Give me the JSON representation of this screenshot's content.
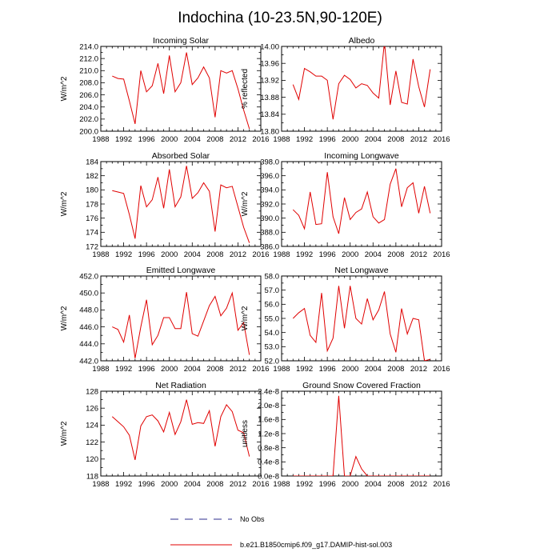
{
  "figure": {
    "title": "Indochina (10-23.5N,90-120E)"
  },
  "legend": {
    "no_obs_label": "No Obs",
    "model_label": "b.e21.B1850cmip6.f09_g17.DAMIP-hist-sol.003",
    "no_obs_color": "#2c2c8c",
    "model_color": "#e00000"
  },
  "chart_data": [
    {
      "type": "line",
      "title": "Incoming Solar",
      "ylabel": "W/m^2",
      "xlim": [
        1988,
        2016
      ],
      "ylim": [
        200,
        214
      ],
      "xticks": [
        1988,
        1992,
        1996,
        2000,
        2004,
        2008,
        2012,
        2016
      ],
      "yticks": [
        "200.0",
        "202.0",
        "204.0",
        "206.0",
        "208.0",
        "210.0",
        "212.0",
        "214.0"
      ],
      "x": [
        1990,
        1991,
        1992,
        1993,
        1994,
        1995,
        1996,
        1997,
        1998,
        1999,
        2000,
        2001,
        2002,
        2003,
        2004,
        2005,
        2006,
        2007,
        2008,
        2009,
        2010,
        2011,
        2012,
        2013,
        2014
      ],
      "y": [
        209.1,
        208.7,
        208.6,
        205.0,
        201.2,
        210.0,
        206.5,
        207.5,
        211.2,
        206.2,
        212.5,
        206.5,
        208.0,
        213.0,
        207.7,
        208.8,
        210.6,
        208.8,
        202.3,
        210.0,
        209.6,
        210.0,
        207.0,
        203.5,
        200.4
      ]
    },
    {
      "type": "line",
      "title": "Albedo",
      "ylabel": "% reflected",
      "xlim": [
        1988,
        2016
      ],
      "ylim": [
        13.8,
        14.0
      ],
      "xticks": [
        1988,
        1992,
        1996,
        2000,
        2004,
        2008,
        2012,
        2016
      ],
      "yticks": [
        "13.80",
        "13.84",
        "13.88",
        "13.92",
        "13.96",
        "14.00"
      ],
      "x": [
        1990,
        1991,
        1992,
        1993,
        1994,
        1995,
        1996,
        1997,
        1998,
        1999,
        2000,
        2001,
        2002,
        2003,
        2004,
        2005,
        2006,
        2007,
        2008,
        2009,
        2010,
        2011,
        2012,
        2013,
        2014
      ],
      "y": [
        13.91,
        13.875,
        13.948,
        13.94,
        13.93,
        13.93,
        13.92,
        13.828,
        13.912,
        13.932,
        13.922,
        13.902,
        13.912,
        13.908,
        13.89,
        13.878,
        14.01,
        13.862,
        13.942,
        13.868,
        13.864,
        13.97,
        13.905,
        13.857,
        13.946
      ]
    },
    {
      "type": "line",
      "title": "Absorbed Solar",
      "ylabel": "W/m^2",
      "xlim": [
        1988,
        2016
      ],
      "ylim": [
        172,
        184
      ],
      "xticks": [
        1988,
        1992,
        1996,
        2000,
        2004,
        2008,
        2012,
        2016
      ],
      "yticks": [
        "172",
        "174",
        "176",
        "178",
        "180",
        "182",
        "184"
      ],
      "x": [
        1990,
        1991,
        1992,
        1993,
        1994,
        1995,
        1996,
        1997,
        1998,
        1999,
        2000,
        2001,
        2002,
        2003,
        2004,
        2005,
        2006,
        2007,
        2008,
        2009,
        2010,
        2011,
        2012,
        2013,
        2014
      ],
      "y": [
        179.9,
        179.7,
        179.5,
        176.5,
        173.1,
        180.6,
        177.6,
        178.6,
        181.8,
        177.4,
        182.9,
        177.6,
        179.0,
        183.4,
        178.8,
        179.6,
        181.0,
        179.8,
        174.1,
        180.7,
        180.3,
        180.5,
        177.6,
        174.7,
        172.5
      ]
    },
    {
      "type": "line",
      "title": "Incoming Longwave",
      "ylabel": "W/m^2",
      "xlim": [
        1988,
        2016
      ],
      "ylim": [
        386,
        398
      ],
      "xticks": [
        1988,
        1992,
        1996,
        2000,
        2004,
        2008,
        2012,
        2016
      ],
      "yticks": [
        "386.0",
        "388.0",
        "390.0",
        "392.0",
        "394.0",
        "396.0",
        "398.0"
      ],
      "x": [
        1990,
        1991,
        1992,
        1993,
        1994,
        1995,
        1996,
        1997,
        1998,
        1999,
        2000,
        2001,
        2002,
        2003,
        2004,
        2005,
        2006,
        2007,
        2008,
        2009,
        2010,
        2011,
        2012,
        2013,
        2014
      ],
      "y": [
        391.2,
        390.4,
        388.5,
        393.7,
        389.1,
        389.2,
        396.5,
        390.2,
        387.8,
        392.9,
        389.8,
        390.8,
        391.3,
        393.7,
        390.2,
        389.3,
        389.8,
        394.8,
        397.0,
        391.6,
        394.3,
        395.0,
        390.7,
        394.5,
        390.7
      ]
    },
    {
      "type": "line",
      "title": "Emitted Longwave",
      "ylabel": "W/m^2",
      "xlim": [
        1988,
        2016
      ],
      "ylim": [
        442,
        452
      ],
      "xticks": [
        1988,
        1992,
        1996,
        2000,
        2004,
        2008,
        2012,
        2016
      ],
      "yticks": [
        "442.0",
        "444.0",
        "446.0",
        "448.0",
        "450.0",
        "452.0"
      ],
      "x": [
        1990,
        1991,
        1992,
        1993,
        1994,
        1995,
        1996,
        1997,
        1998,
        1999,
        2000,
        2001,
        2002,
        2003,
        2004,
        2005,
        2006,
        2007,
        2008,
        2009,
        2010,
        2011,
        2012,
        2013,
        2014
      ],
      "y": [
        446.0,
        445.7,
        444.2,
        447.4,
        442.3,
        446.0,
        449.2,
        443.9,
        445.0,
        447.1,
        447.1,
        445.8,
        445.8,
        450.1,
        445.2,
        444.9,
        446.7,
        448.5,
        449.6,
        447.3,
        448.2,
        450.0,
        445.6,
        446.5,
        442.7
      ]
    },
    {
      "type": "line",
      "title": "Net Longwave",
      "ylabel": "W/m^2",
      "xlim": [
        1988,
        2016
      ],
      "ylim": [
        52,
        58
      ],
      "xticks": [
        1988,
        1992,
        1996,
        2000,
        2004,
        2008,
        2012,
        2016
      ],
      "yticks": [
        "52.0",
        "53.0",
        "54.0",
        "55.0",
        "56.0",
        "57.0",
        "58.0"
      ],
      "x": [
        1990,
        1991,
        1992,
        1993,
        1994,
        1995,
        1996,
        1997,
        1998,
        1999,
        2000,
        2001,
        2002,
        2003,
        2004,
        2005,
        2006,
        2007,
        2008,
        2009,
        2010,
        2011,
        2012,
        2013,
        2014
      ],
      "y": [
        55.0,
        55.4,
        55.7,
        53.8,
        53.3,
        56.8,
        52.7,
        53.6,
        57.3,
        54.3,
        57.3,
        55.0,
        54.6,
        56.4,
        54.9,
        55.6,
        56.9,
        53.9,
        52.6,
        55.7,
        53.9,
        55.0,
        54.9,
        52.0,
        52.1
      ]
    },
    {
      "type": "line",
      "title": "Net Radiation",
      "ylabel": "W/m^2",
      "xlim": [
        1988,
        2016
      ],
      "ylim": [
        118,
        128
      ],
      "xticks": [
        1988,
        1992,
        1996,
        2000,
        2004,
        2008,
        2012,
        2016
      ],
      "yticks": [
        "118",
        "120",
        "122",
        "124",
        "126",
        "128"
      ],
      "x": [
        1990,
        1991,
        1992,
        1993,
        1994,
        1995,
        1996,
        1997,
        1998,
        1999,
        2000,
        2001,
        2002,
        2003,
        2004,
        2005,
        2006,
        2007,
        2008,
        2009,
        2010,
        2011,
        2012,
        2013,
        2014
      ],
      "y": [
        125.0,
        124.4,
        123.8,
        122.8,
        119.9,
        123.9,
        125.0,
        125.2,
        124.5,
        123.2,
        125.5,
        122.9,
        124.4,
        127.0,
        124.1,
        124.3,
        124.2,
        125.7,
        121.5,
        125.0,
        126.4,
        125.6,
        123.4,
        123.1,
        120.3
      ]
    },
    {
      "type": "line",
      "title": "Ground Snow Covered Fraction",
      "ylabel": "unitless",
      "xlim": [
        1988,
        2016
      ],
      "ylim": [
        0,
        2.4e-08
      ],
      "xticks": [
        1988,
        1992,
        1996,
        2000,
        2004,
        2008,
        2012,
        2016
      ],
      "yticks": [
        "0.0e-8",
        "0.4e-8",
        "0.8e-8",
        "1.2e-8",
        "1.6e-8",
        "2.0e-8",
        "2.4e-8"
      ],
      "x": [
        1990,
        1991,
        1992,
        1993,
        1994,
        1995,
        1996,
        1997,
        1998,
        1999,
        2000,
        2001,
        2002,
        2003,
        2004,
        2005,
        2006,
        2007,
        2008,
        2009,
        2010,
        2011,
        2012,
        2013,
        2014
      ],
      "y": [
        0,
        0,
        0,
        0,
        0,
        0,
        0,
        0,
        2.27e-08,
        0,
        0,
        5.5e-09,
        2e-09,
        0,
        0,
        0,
        0,
        0,
        0,
        0,
        0,
        0,
        0,
        0,
        0
      ]
    }
  ]
}
